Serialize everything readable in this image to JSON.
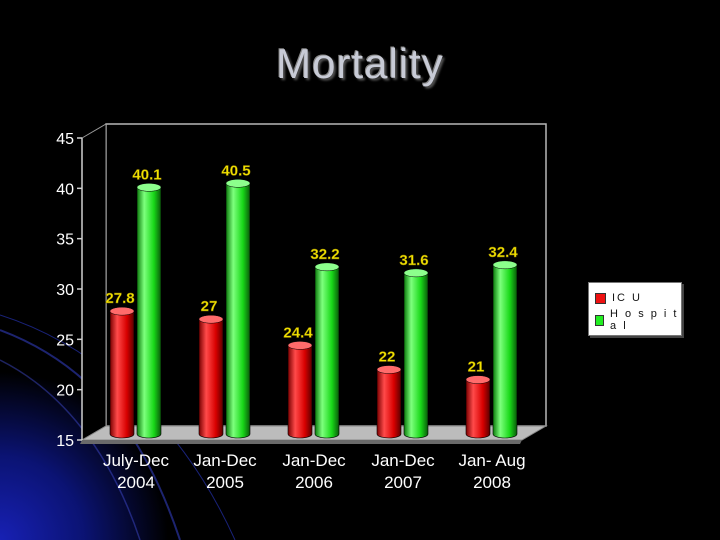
{
  "slide": {
    "title": "Mortality"
  },
  "chart_data": {
    "type": "bar",
    "title": "",
    "xlabel": "",
    "ylabel": "",
    "ylim": [
      15,
      45
    ],
    "yticks": [
      15,
      20,
      25,
      30,
      35,
      40,
      45
    ],
    "categories": [
      [
        "July-Dec",
        "2004"
      ],
      [
        "Jan-Dec",
        "2005"
      ],
      [
        "Jan-Dec",
        "2006"
      ],
      [
        "Jan-Dec",
        "2007"
      ],
      [
        "Jan- Aug",
        "2008"
      ]
    ],
    "series": [
      {
        "name": "IC U",
        "color": "#ee1111",
        "values": [
          27.8,
          27,
          24.4,
          22,
          21
        ]
      },
      {
        "name": "H o s p i t a l",
        "color": "#22ee22",
        "values": [
          40.1,
          40.5,
          32.2,
          31.6,
          32.4
        ]
      }
    ],
    "data_label_color": "#f2e200",
    "legend_position": "right",
    "grid": false,
    "style": "3d-cylinder"
  }
}
